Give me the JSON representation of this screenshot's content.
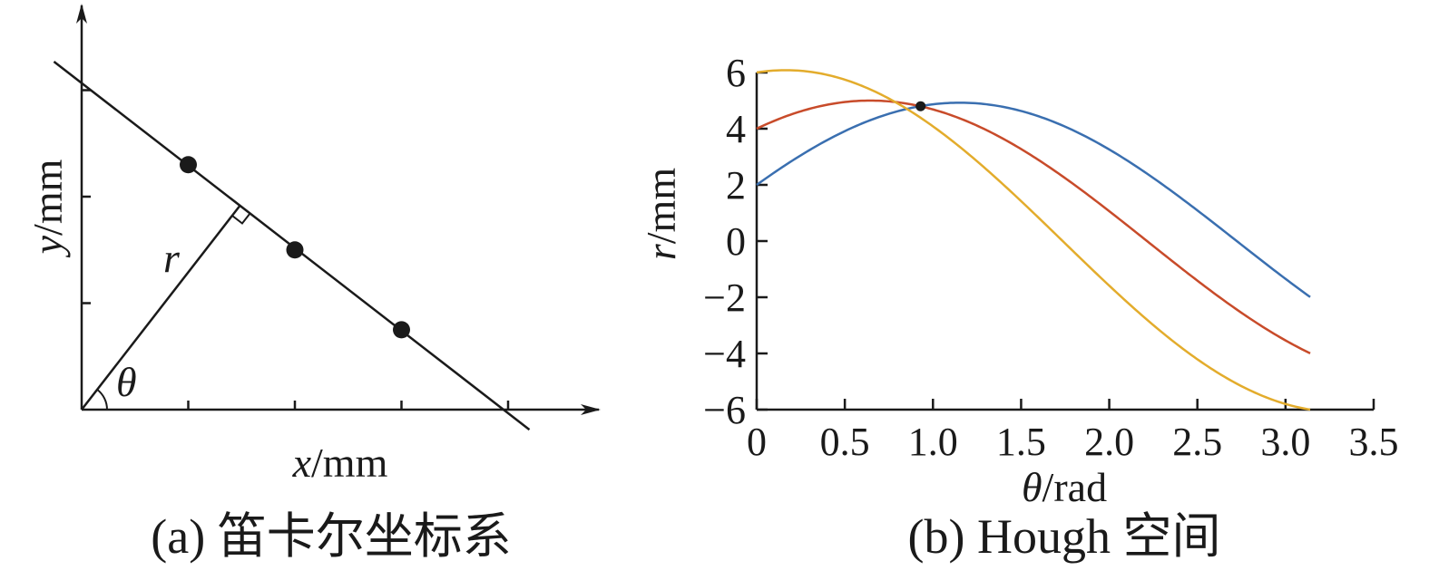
{
  "panel_a": {
    "caption": "(a) 笛卡尔坐标系",
    "xlabel_var": "x",
    "xlabel_unit": "/mm",
    "ylabel_var": "y",
    "ylabel_unit": "/mm",
    "r_label": "r",
    "theta_label": "θ",
    "points": [
      {
        "x": 1,
        "y": 2.3
      },
      {
        "x": 2,
        "y": 1.5
      },
      {
        "x": 3,
        "y": 0.75
      }
    ],
    "x_ticks": [
      1,
      2,
      3,
      4
    ],
    "y_ticks": [
      1,
      2,
      3
    ],
    "x_max": 4.8,
    "y_max": 3.8
  },
  "panel_b": {
    "caption": "(b) Hough 空间",
    "xlabel_var": "θ",
    "xlabel_unit": "/rad",
    "ylabel_var": "r",
    "ylabel_unit": "/mm"
  },
  "chart_data": [
    {
      "type": "line",
      "title": "(b) Hough 空间",
      "xlabel": "θ/rad",
      "ylabel": "r/mm",
      "xlim": [
        0,
        3.5
      ],
      "ylim": [
        -6,
        6
      ],
      "x_ticks": [
        "0",
        "0.5",
        "1.0",
        "1.5",
        "2.0",
        "2.5",
        "3.0",
        "3.5"
      ],
      "y_ticks": [
        "−6",
        "−4",
        "−2",
        "0",
        "2",
        "4",
        "6"
      ],
      "grid": false,
      "series": [
        {
          "color": "#3a6fb0",
          "x_cos_coef": 2,
          "y_sin_coef": 4.5,
          "x": [
            0,
            0.5,
            1.0,
            1.5,
            2.0,
            2.5,
            3.14
          ],
          "values": [
            2.0,
            3.91,
            4.87,
            4.63,
            3.26,
            1.09,
            -2.0
          ]
        },
        {
          "color": "#c84b2a",
          "x_cos_coef": 4,
          "y_sin_coef": 3,
          "x": [
            0,
            0.5,
            1.0,
            1.5,
            2.0,
            2.5,
            3.14
          ],
          "values": [
            4.0,
            4.95,
            4.68,
            3.27,
            1.06,
            -1.41,
            -4.0
          ]
        },
        {
          "color": "#e3ac2c",
          "x_cos_coef": 6,
          "y_sin_coef": 1,
          "x": [
            0,
            0.5,
            1.0,
            1.5,
            2.0,
            2.5,
            3.14
          ],
          "values": [
            6.0,
            5.75,
            4.08,
            1.42,
            -1.59,
            -4.21,
            -6.0
          ]
        }
      ],
      "intersection": {
        "x": 0.93,
        "y": 4.8
      }
    }
  ]
}
